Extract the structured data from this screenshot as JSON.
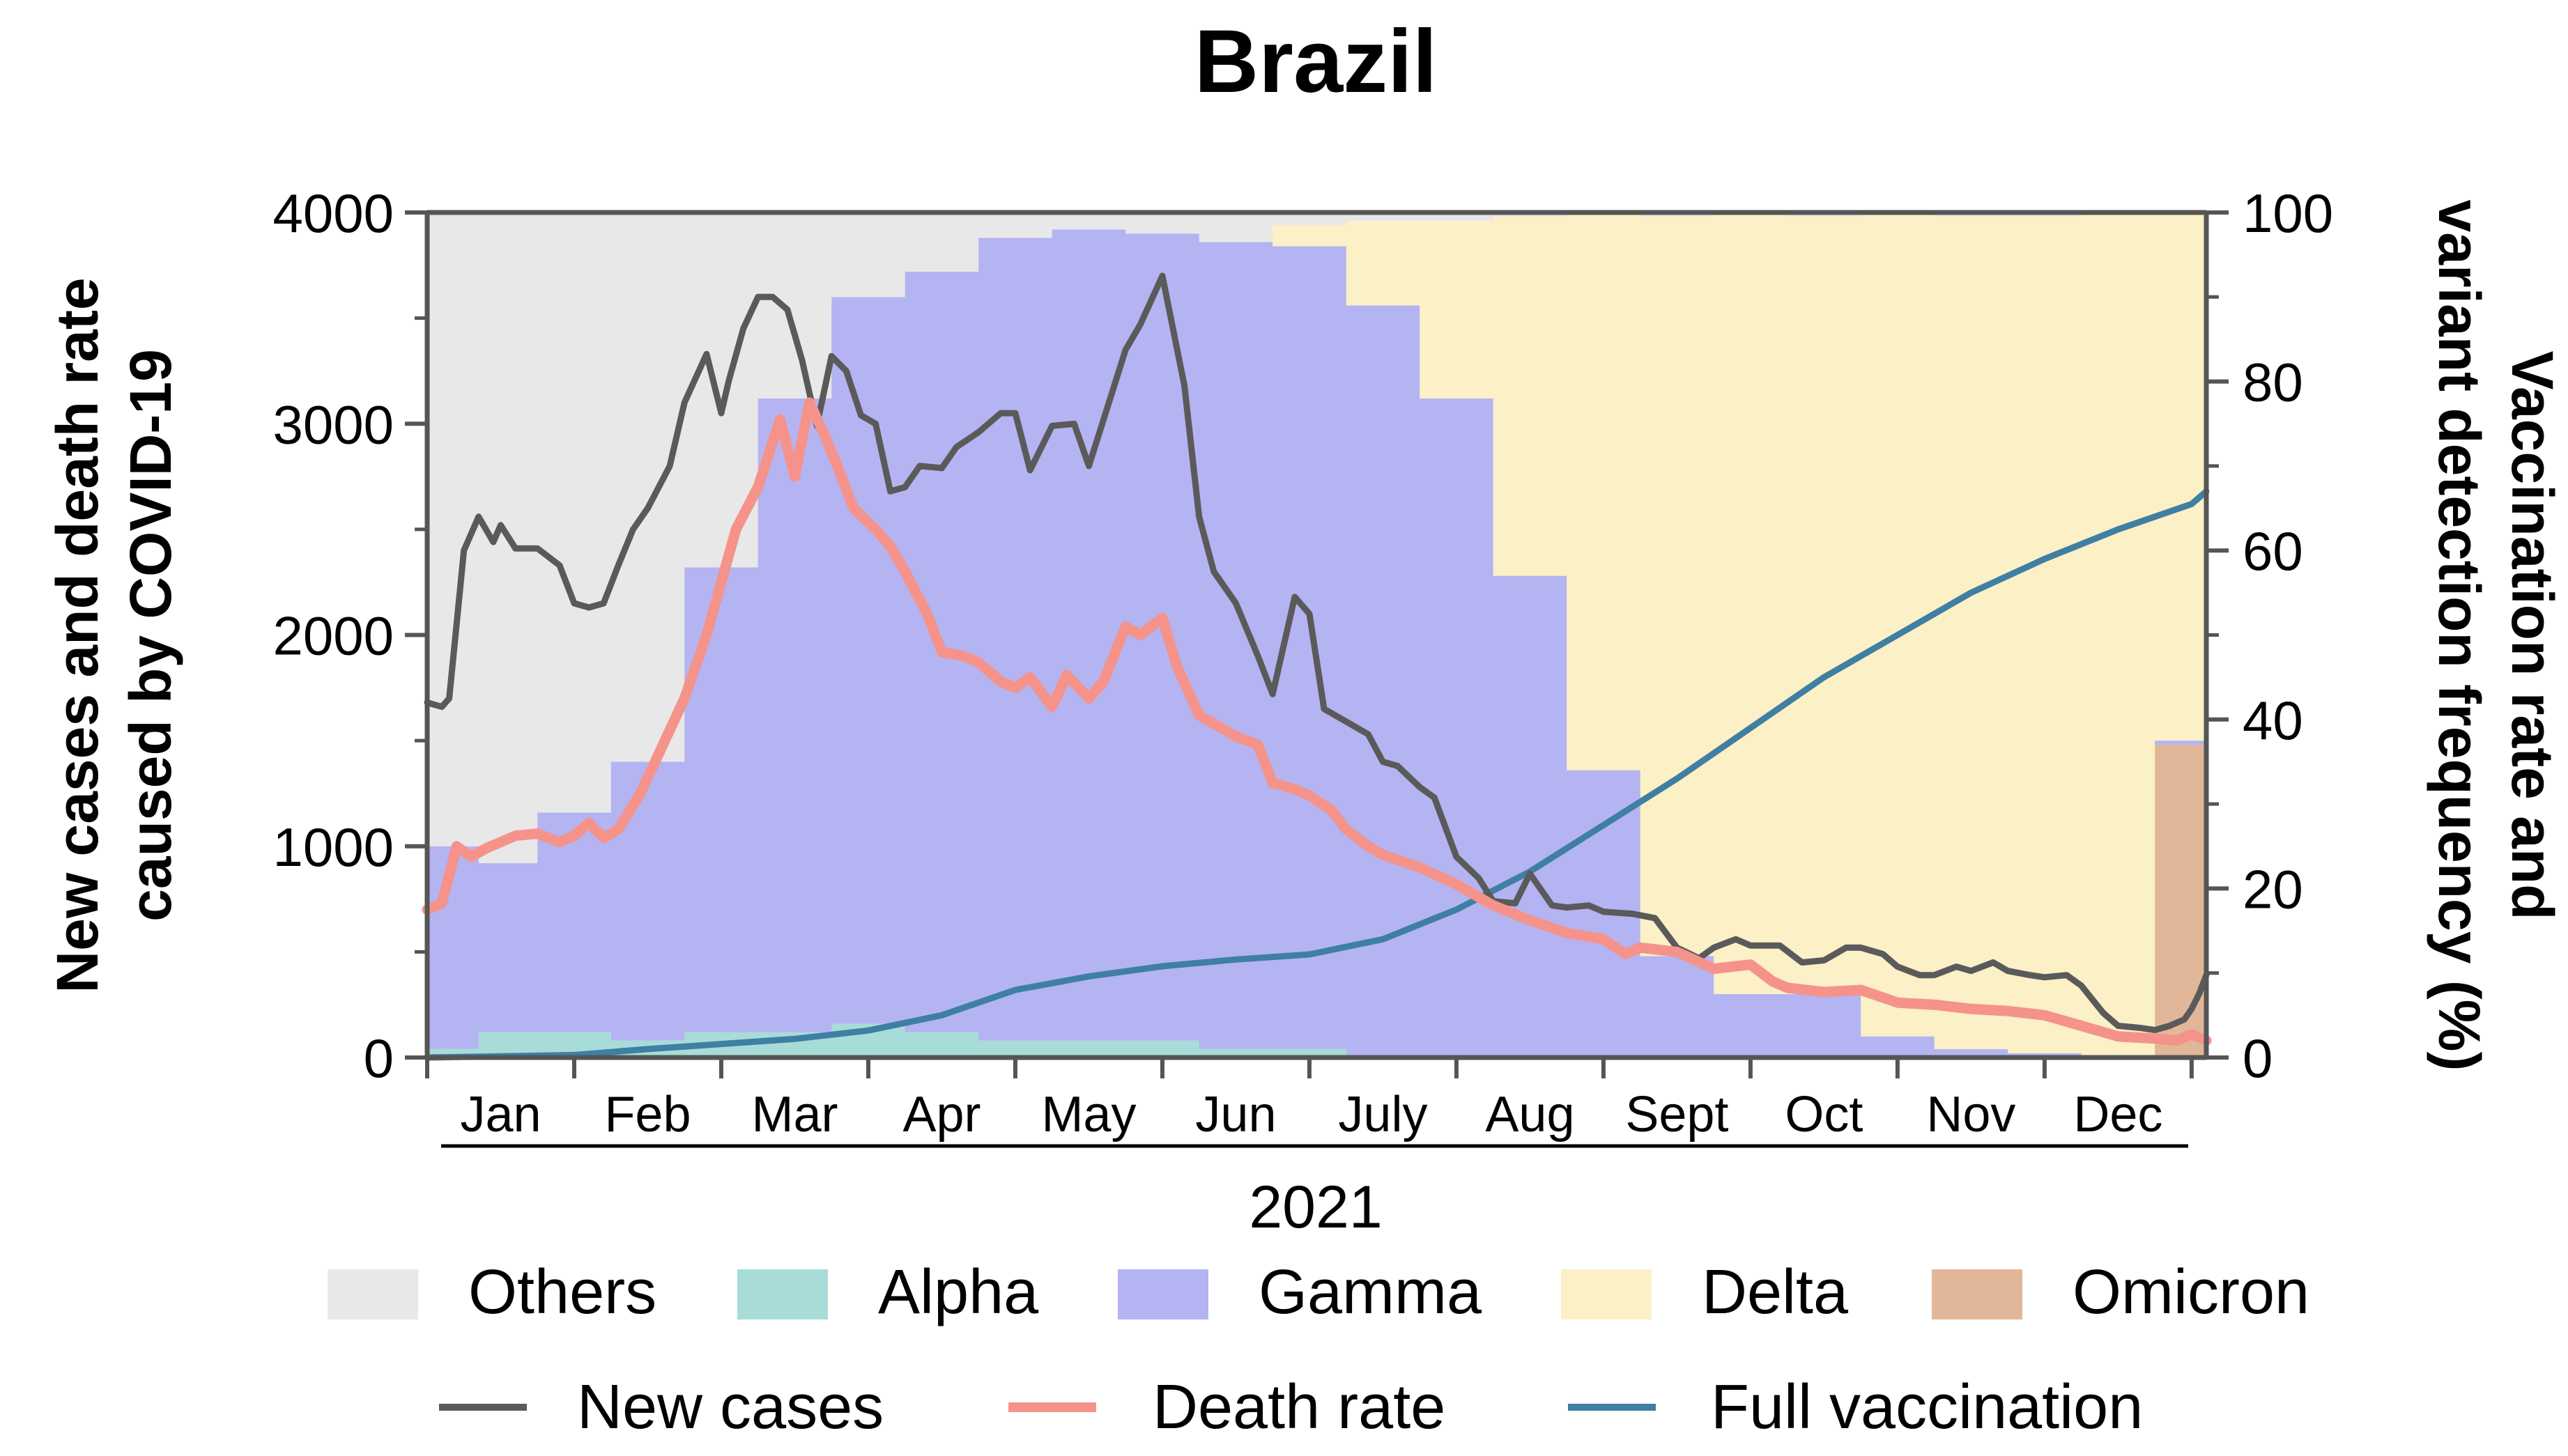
{
  "chart_data": {
    "type": "area",
    "title": "Brazil",
    "xlabel": "2021",
    "ylabel_left": [
      "New cases and death rate",
      "caused by COVID-19"
    ],
    "ylabel_right": [
      "Vaccination rate and",
      "variant detection frequency (%)"
    ],
    "left_axis": {
      "range": [
        0,
        4000
      ],
      "ticks": [
        0,
        1000,
        2000,
        3000,
        4000
      ]
    },
    "right_axis": {
      "range": [
        0,
        100
      ],
      "ticks": [
        0,
        20,
        40,
        60,
        80,
        100
      ]
    },
    "months": [
      "Jan",
      "Feb",
      "Mar",
      "Apr",
      "May",
      "Jun",
      "July",
      "Aug",
      "Sept",
      "Oct",
      "Nov",
      "Dec"
    ],
    "grid": false,
    "variants": [
      {
        "name": "Others",
        "color": "#e8e8e8"
      },
      {
        "name": "Alpha",
        "color": "#a8dcd8"
      },
      {
        "name": "Gamma",
        "color": "#b4b4f2"
      },
      {
        "name": "Delta",
        "color": "#fbf0c6"
      },
      {
        "name": "Omicron",
        "color": "#e2b799"
      }
    ],
    "variant_periods": [
      {
        "start": 0,
        "end": 0.35,
        "alpha": 1,
        "gamma": 24,
        "delta": 0,
        "omicron": 0
      },
      {
        "start": 0.35,
        "end": 0.75,
        "alpha": 3,
        "gamma": 20,
        "delta": 0,
        "omicron": 0
      },
      {
        "start": 0.75,
        "end": 1.25,
        "alpha": 3,
        "gamma": 26,
        "delta": 0,
        "omicron": 0
      },
      {
        "start": 1.25,
        "end": 1.75,
        "alpha": 2,
        "gamma": 33,
        "delta": 0,
        "omicron": 0
      },
      {
        "start": 1.75,
        "end": 2.25,
        "alpha": 3,
        "gamma": 55,
        "delta": 0,
        "omicron": 0
      },
      {
        "start": 2.25,
        "end": 2.75,
        "alpha": 3,
        "gamma": 75,
        "delta": 0,
        "omicron": 0
      },
      {
        "start": 2.75,
        "end": 3.25,
        "alpha": 4,
        "gamma": 86,
        "delta": 0,
        "omicron": 0
      },
      {
        "start": 3.25,
        "end": 3.75,
        "alpha": 3,
        "gamma": 90,
        "delta": 0,
        "omicron": 0
      },
      {
        "start": 3.75,
        "end": 4.25,
        "alpha": 2,
        "gamma": 95,
        "delta": 0,
        "omicron": 0
      },
      {
        "start": 4.25,
        "end": 4.75,
        "alpha": 2,
        "gamma": 96,
        "delta": 0,
        "omicron": 0
      },
      {
        "start": 4.75,
        "end": 5.25,
        "alpha": 2,
        "gamma": 95.5,
        "delta": 0,
        "omicron": 0
      },
      {
        "start": 5.25,
        "end": 5.75,
        "alpha": 1,
        "gamma": 95.5,
        "delta": 0,
        "omicron": 0
      },
      {
        "start": 5.75,
        "end": 6.25,
        "alpha": 1,
        "gamma": 95,
        "delta": 2.5,
        "omicron": 0
      },
      {
        "start": 6.25,
        "end": 6.75,
        "alpha": 0,
        "gamma": 89,
        "delta": 10,
        "omicron": 0
      },
      {
        "start": 6.75,
        "end": 7.25,
        "alpha": 0,
        "gamma": 78,
        "delta": 21,
        "omicron": 0
      },
      {
        "start": 7.25,
        "end": 7.75,
        "alpha": 0,
        "gamma": 57,
        "delta": 42.5,
        "omicron": 0
      },
      {
        "start": 7.75,
        "end": 8.25,
        "alpha": 0,
        "gamma": 34,
        "delta": 66,
        "omicron": 0
      },
      {
        "start": 8.25,
        "end": 8.75,
        "alpha": 0,
        "gamma": 12,
        "delta": 87.5,
        "omicron": 0
      },
      {
        "start": 8.75,
        "end": 9.25,
        "alpha": 0,
        "gamma": 7.5,
        "delta": 92.5,
        "omicron": 0
      },
      {
        "start": 9.25,
        "end": 9.75,
        "alpha": 0,
        "gamma": 7.5,
        "delta": 92,
        "omicron": 0
      },
      {
        "start": 9.75,
        "end": 10.25,
        "alpha": 0,
        "gamma": 2.5,
        "delta": 97.5,
        "omicron": 0
      },
      {
        "start": 10.25,
        "end": 10.75,
        "alpha": 0,
        "gamma": 1,
        "delta": 98.5,
        "omicron": 0
      },
      {
        "start": 10.75,
        "end": 11.25,
        "alpha": 0,
        "gamma": 0.5,
        "delta": 99,
        "omicron": 0
      },
      {
        "start": 11.25,
        "end": 11.75,
        "alpha": 0,
        "gamma": 0,
        "delta": 100,
        "omicron": 0
      },
      {
        "start": 11.75,
        "end": 12.1,
        "alpha": 0,
        "gamma": 0.5,
        "delta": 62.3,
        "omicron": 37
      }
    ],
    "series": [
      {
        "name": "New cases",
        "axis": "left",
        "color": "#5a5a5a",
        "x": [
          0,
          0.1,
          0.15,
          0.25,
          0.35,
          0.45,
          0.5,
          0.6,
          0.75,
          0.9,
          1.0,
          1.1,
          1.2,
          1.3,
          1.4,
          1.5,
          1.65,
          1.75,
          1.9,
          2.0,
          2.05,
          2.15,
          2.25,
          2.35,
          2.45,
          2.55,
          2.65,
          2.75,
          2.85,
          2.95,
          3.05,
          3.15,
          3.25,
          3.35,
          3.5,
          3.6,
          3.75,
          3.9,
          4.0,
          4.1,
          4.25,
          4.4,
          4.5,
          4.6,
          4.75,
          4.85,
          5.0,
          5.15,
          5.25,
          5.35,
          5.5,
          5.65,
          5.75,
          5.9,
          6.0,
          6.1,
          6.25,
          6.4,
          6.5,
          6.6,
          6.75,
          6.85,
          7.0,
          7.15,
          7.25,
          7.4,
          7.5,
          7.65,
          7.75,
          7.9,
          8.0,
          8.2,
          8.35,
          8.5,
          8.65,
          8.75,
          8.9,
          9.0,
          9.2,
          9.35,
          9.5,
          9.65,
          9.75,
          9.9,
          10.0,
          10.15,
          10.25,
          10.4,
          10.5,
          10.65,
          10.75,
          10.9,
          11.0,
          11.15,
          11.25,
          11.4,
          11.5,
          11.65,
          11.75,
          11.85,
          11.95,
          12.0,
          12.05,
          12.1
        ],
        "values": [
          1680,
          1660,
          1700,
          2400,
          2560,
          2440,
          2520,
          2410,
          2410,
          2330,
          2150,
          2130,
          2150,
          2330,
          2500,
          2600,
          2800,
          3100,
          3330,
          3050,
          3200,
          3450,
          3600,
          3600,
          3540,
          3300,
          2990,
          3320,
          3250,
          3040,
          3000,
          2680,
          2700,
          2800,
          2790,
          2890,
          2960,
          3050,
          3050,
          2780,
          2990,
          3000,
          2800,
          3020,
          3350,
          3470,
          3700,
          3180,
          2560,
          2300,
          2150,
          1900,
          1720,
          2180,
          2100,
          1650,
          1590,
          1530,
          1400,
          1380,
          1280,
          1230,
          950,
          850,
          740,
          730,
          870,
          720,
          710,
          720,
          690,
          680,
          660,
          520,
          470,
          520,
          560,
          530,
          530,
          450,
          460,
          520,
          520,
          490,
          430,
          390,
          390,
          430,
          410,
          450,
          410,
          390,
          380,
          390,
          340,
          210,
          150,
          140,
          130,
          150,
          180,
          230,
          300,
          390
        ]
      },
      {
        "name": "Death rate",
        "axis": "left",
        "color": "#f5938b",
        "x": [
          0,
          0.1,
          0.2,
          0.3,
          0.4,
          0.5,
          0.6,
          0.75,
          0.9,
          1.0,
          1.1,
          1.2,
          1.3,
          1.45,
          1.55,
          1.65,
          1.75,
          1.9,
          2.1,
          2.25,
          2.4,
          2.5,
          2.6,
          2.7,
          2.8,
          2.9,
          3.05,
          3.15,
          3.25,
          3.4,
          3.5,
          3.65,
          3.75,
          3.9,
          4.0,
          4.1,
          4.25,
          4.35,
          4.5,
          4.6,
          4.75,
          4.85,
          5.0,
          5.1,
          5.25,
          5.4,
          5.5,
          5.65,
          5.75,
          5.9,
          6.0,
          6.15,
          6.25,
          6.4,
          6.5,
          6.75,
          7.0,
          7.25,
          7.5,
          7.75,
          8.0,
          8.15,
          8.25,
          8.5,
          8.75,
          9.0,
          9.15,
          9.25,
          9.5,
          9.75,
          10.0,
          10.25,
          10.5,
          10.75,
          11.0,
          11.25,
          11.5,
          11.75,
          11.9,
          12.0,
          12.1
        ],
        "values": [
          700,
          730,
          1000,
          950,
          990,
          1020,
          1050,
          1060,
          1020,
          1050,
          1110,
          1040,
          1080,
          1250,
          1400,
          1550,
          1700,
          2000,
          2500,
          2700,
          3020,
          2750,
          3100,
          2950,
          2780,
          2600,
          2500,
          2420,
          2300,
          2100,
          1920,
          1900,
          1870,
          1780,
          1750,
          1800,
          1660,
          1810,
          1700,
          1780,
          2040,
          2000,
          2080,
          1850,
          1620,
          1560,
          1520,
          1480,
          1300,
          1270,
          1240,
          1170,
          1080,
          1000,
          960,
          900,
          820,
          720,
          650,
          590,
          560,
          490,
          520,
          500,
          420,
          440,
          360,
          330,
          310,
          320,
          260,
          250,
          230,
          220,
          200,
          150,
          100,
          90,
          80,
          110,
          80
        ]
      },
      {
        "name": "Full vaccination",
        "axis": "right",
        "color": "#3f7fa3",
        "x": [
          0,
          1.0,
          1.5,
          2.0,
          2.5,
          3.0,
          3.5,
          4.0,
          4.5,
          5.0,
          5.5,
          6.0,
          6.5,
          7.0,
          7.5,
          8.0,
          8.5,
          9.0,
          9.5,
          10.0,
          10.5,
          11.0,
          11.5,
          12.0,
          12.1
        ],
        "values": [
          0,
          0.3,
          1.0,
          1.6,
          2.2,
          3.2,
          5.0,
          8.0,
          9.6,
          10.8,
          11.6,
          12.2,
          14.0,
          17.5,
          22.0,
          27.5,
          33.0,
          39.0,
          45.0,
          50.0,
          55.0,
          59.0,
          62.5,
          65.5,
          67.0
        ]
      }
    ]
  }
}
